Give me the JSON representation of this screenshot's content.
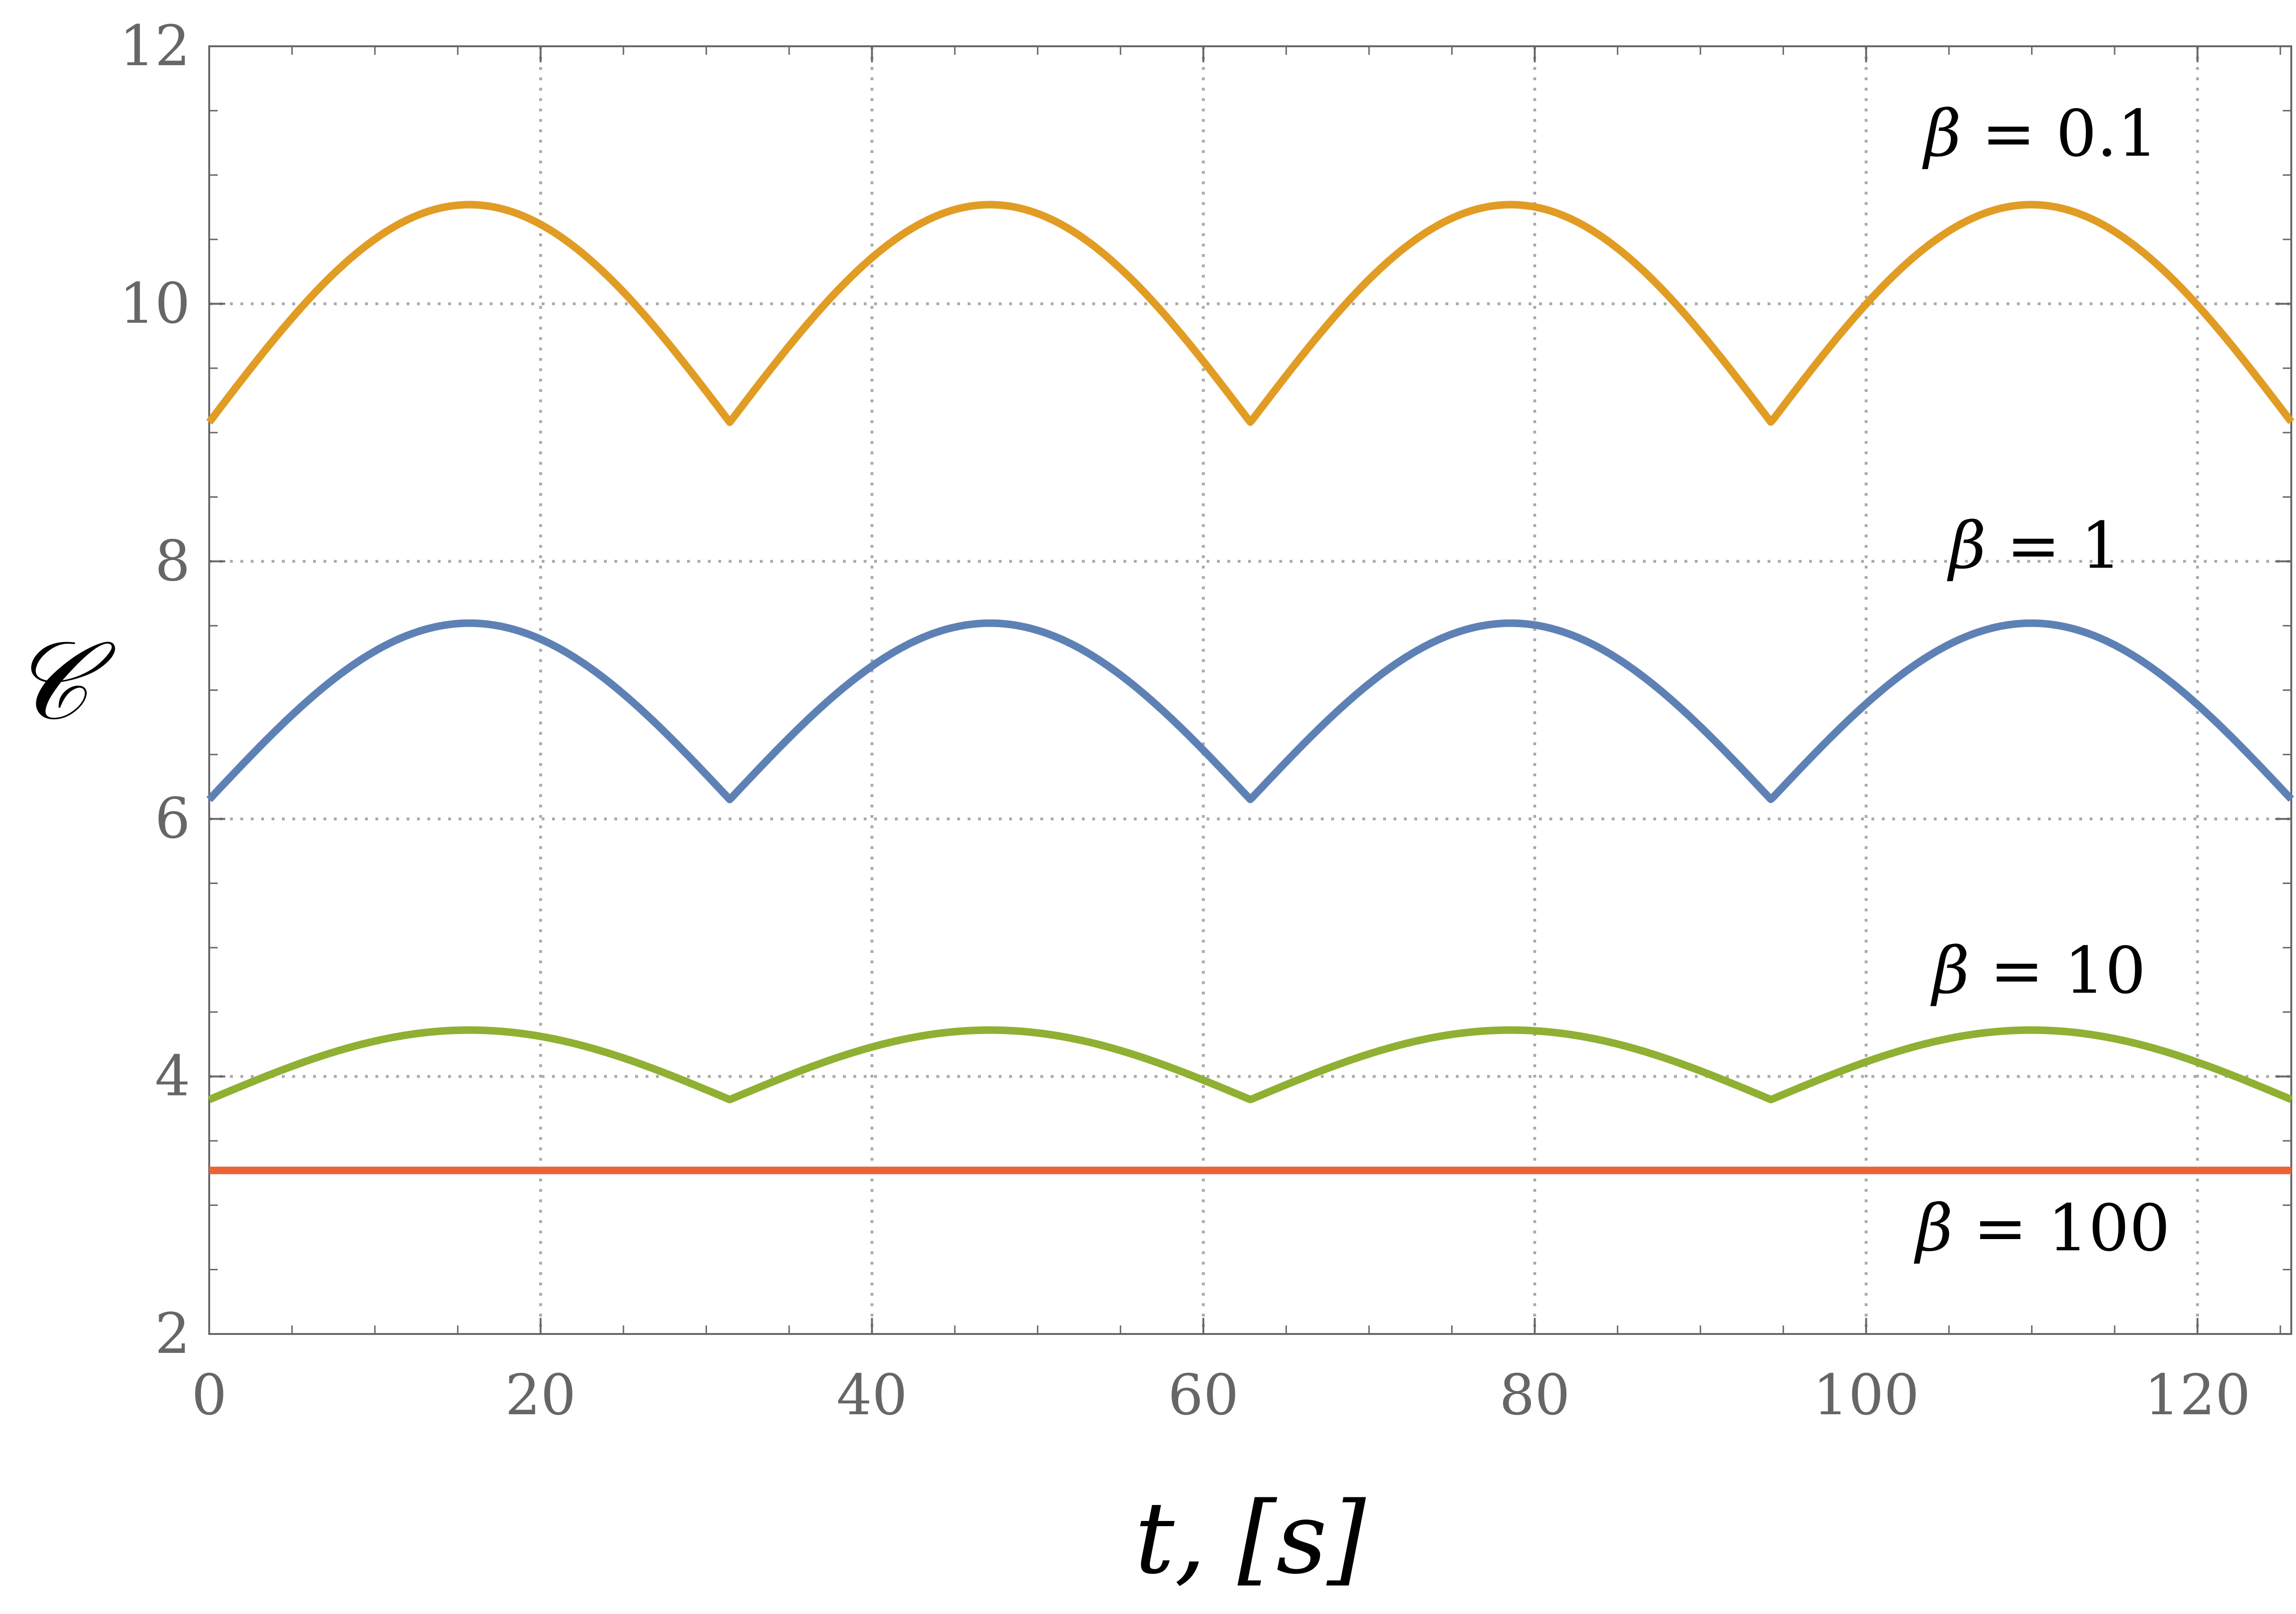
{
  "chart_data": {
    "type": "line",
    "title": "",
    "xlabel": "t, [s]",
    "ylabel": "𝒞",
    "xlim": [
      0,
      125.66
    ],
    "ylim": [
      2,
      12
    ],
    "x_ticks": [
      "0",
      "20",
      "40",
      "60",
      "80",
      "100",
      "120"
    ],
    "y_ticks": [
      "2",
      "4",
      "6",
      "8",
      "10",
      "12"
    ],
    "grid": "dotted",
    "legend": "inline labels next to curves at right",
    "period": 31.42,
    "series": [
      {
        "name": "β = 0.1",
        "color": "#E19C24",
        "min": 9.08,
        "max": 10.77,
        "label_at": [
          103.5,
          11.15
        ],
        "x": [
          0,
          15.71,
          31.42,
          47.12,
          62.83,
          78.54,
          94.25,
          109.96,
          125.66
        ],
        "y": [
          9.08,
          10.77,
          9.08,
          10.77,
          9.08,
          10.77,
          9.08,
          10.77,
          9.08
        ]
      },
      {
        "name": "β = 1",
        "color": "#5E81B5",
        "min": 6.15,
        "max": 7.52,
        "label_at": [
          105,
          7.95
        ],
        "x": [
          0,
          15.71,
          31.42,
          47.12,
          62.83,
          78.54,
          94.25,
          109.96,
          125.66
        ],
        "y": [
          6.15,
          7.52,
          6.15,
          7.52,
          6.15,
          7.52,
          6.15,
          7.52,
          6.15
        ]
      },
      {
        "name": "β = 10",
        "color": "#8FB032",
        "min": 3.82,
        "max": 4.36,
        "label_at": [
          104,
          4.65
        ],
        "x": [
          0,
          15.71,
          31.42,
          47.12,
          62.83,
          78.54,
          94.25,
          109.96,
          125.66
        ],
        "y": [
          3.82,
          4.36,
          3.82,
          4.36,
          3.82,
          4.36,
          3.82,
          4.36,
          3.82
        ]
      },
      {
        "name": "β = 100",
        "color": "#EB6235",
        "min": 3.27,
        "max": 3.27,
        "label_at": [
          103,
          2.65
        ],
        "x": [
          0,
          125.66
        ],
        "y": [
          3.27,
          3.27
        ]
      }
    ]
  }
}
